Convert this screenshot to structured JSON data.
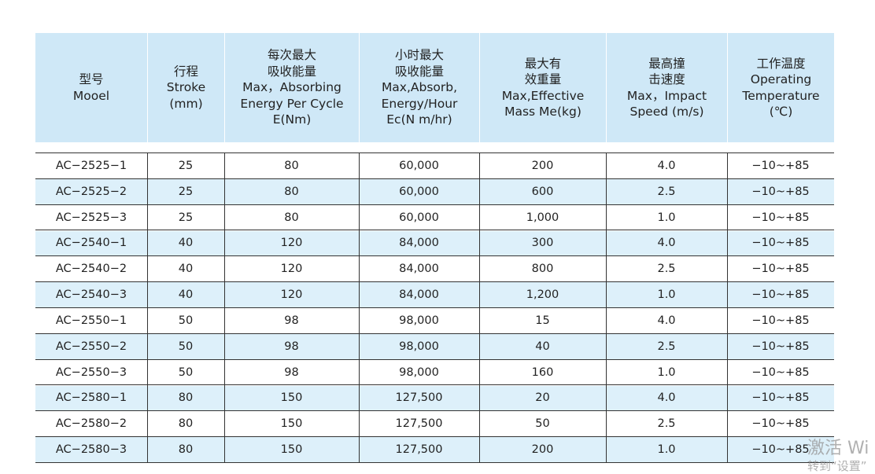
{
  "table": {
    "header": [
      [
        "型号",
        "Mooel"
      ],
      [
        "行程",
        "Stroke",
        "(mm)"
      ],
      [
        "每次最大",
        "吸收能量",
        "Max，Absorbing",
        "Energy Per Cycle",
        "E(Nm)"
      ],
      [
        "小时最大",
        "吸收能量",
        "Max,Absorb,",
        "Energy/Hour",
        "Ec(N m/hr)"
      ],
      [
        "最大有",
        "效重量",
        "Max,Effective",
        "Mass Me(kg)"
      ],
      [
        "最高撞",
        "击速度",
        "Max，Impact",
        "Speed (m/s)"
      ],
      [
        "工作温度",
        "Operating",
        "Temperature",
        "(℃)"
      ]
    ],
    "rows": [
      [
        "AC−2525−1",
        "25",
        "80",
        "60,000",
        "200",
        "4.0",
        "−10~+85"
      ],
      [
        "AC−2525−2",
        "25",
        "80",
        "60,000",
        "600",
        "2.5",
        "−10~+85"
      ],
      [
        "AC−2525−3",
        "25",
        "80",
        "60,000",
        "1,000",
        "1.0",
        "−10~+85"
      ],
      [
        "AC−2540−1",
        "40",
        "120",
        "84,000",
        "300",
        "4.0",
        "−10~+85"
      ],
      [
        "AC−2540−2",
        "40",
        "120",
        "84,000",
        "800",
        "2.5",
        "−10~+85"
      ],
      [
        "AC−2540−3",
        "40",
        "120",
        "84,000",
        "1,200",
        "1.0",
        "−10~+85"
      ],
      [
        "AC−2550−1",
        "50",
        "98",
        "98,000",
        "15",
        "4.0",
        "−10~+85"
      ],
      [
        "AC−2550−2",
        "50",
        "98",
        "98,000",
        "40",
        "2.5",
        "−10~+85"
      ],
      [
        "AC−2550−3",
        "50",
        "98",
        "98,000",
        "160",
        "1.0",
        "−10~+85"
      ],
      [
        "AC−2580−1",
        "80",
        "150",
        "127,500",
        "20",
        "4.0",
        "−10~+85"
      ],
      [
        "AC−2580−2",
        "80",
        "150",
        "127,500",
        "50",
        "2.5",
        "−10~+85"
      ],
      [
        "AC−2580−3",
        "80",
        "150",
        "127,500",
        "200",
        "1.0",
        "−10~+85"
      ]
    ]
  },
  "watermark": {
    "line1": "激活 Wi",
    "line2": "转到“设置”"
  }
}
